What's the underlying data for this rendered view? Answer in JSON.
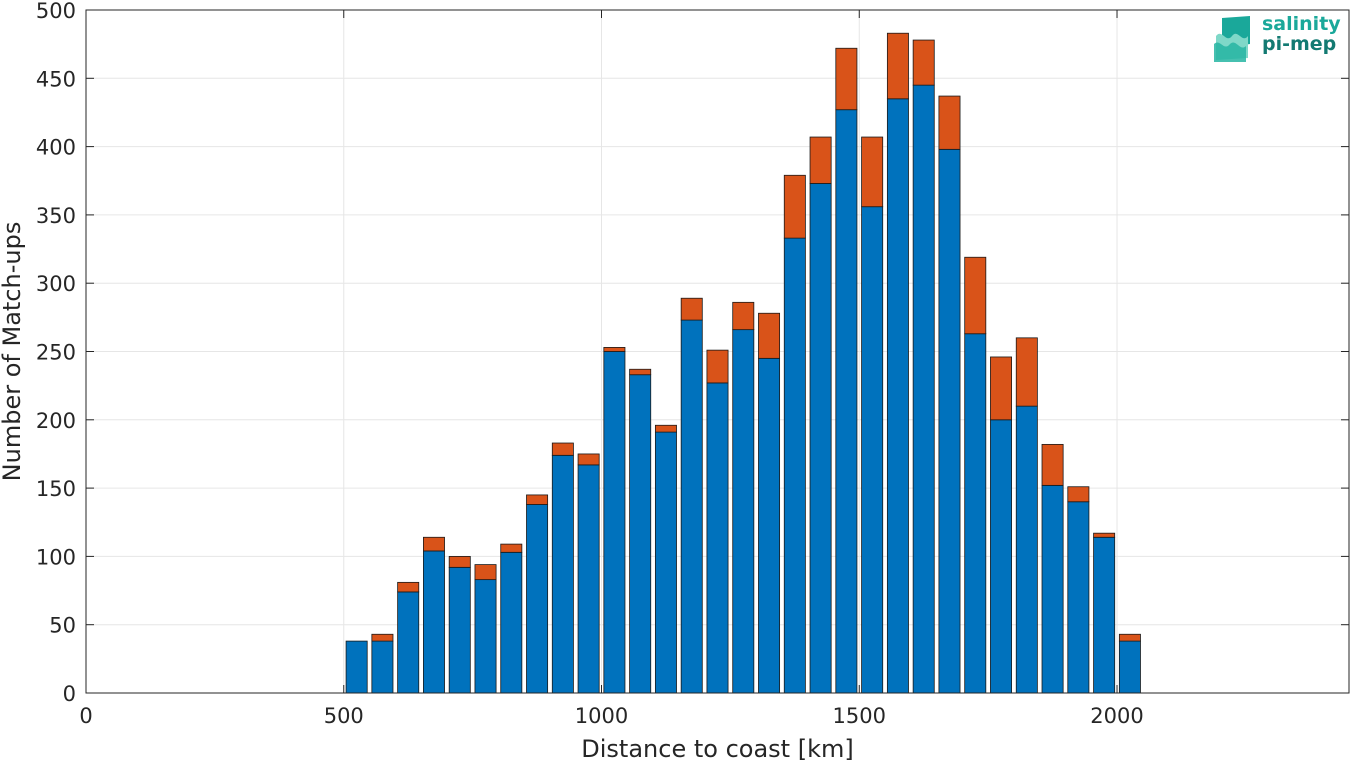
{
  "chart_data": {
    "type": "bar",
    "stacked": true,
    "xlabel": "Distance to coast [km]",
    "ylabel": "Number of Match-ups",
    "xlim": [
      0,
      2450
    ],
    "ylim": [
      0,
      500
    ],
    "xticks": [
      0,
      500,
      1000,
      1500,
      2000
    ],
    "yticks": [
      0,
      50,
      100,
      150,
      200,
      250,
      300,
      350,
      400,
      450,
      500
    ],
    "grid": true,
    "bin_width": 50,
    "x": [
      525,
      575,
      625,
      675,
      725,
      775,
      825,
      875,
      925,
      975,
      1025,
      1075,
      1125,
      1175,
      1225,
      1275,
      1325,
      1375,
      1425,
      1475,
      1525,
      1575,
      1625,
      1675,
      1725,
      1775,
      1825,
      1875,
      1925,
      1975,
      2025
    ],
    "series": [
      {
        "color": "#0072BD",
        "values": [
          38,
          38,
          74,
          104,
          92,
          83,
          103,
          138,
          174,
          167,
          250,
          233,
          191,
          273,
          227,
          266,
          245,
          333,
          373,
          427,
          356,
          435,
          445,
          398,
          263,
          200,
          210,
          152,
          140,
          114,
          38
        ]
      },
      {
        "color": "#D95319",
        "values": [
          0,
          5,
          7,
          10,
          8,
          11,
          6,
          7,
          9,
          8,
          3,
          4,
          5,
          16,
          24,
          20,
          33,
          46,
          34,
          45,
          51,
          48,
          33,
          39,
          56,
          46,
          50,
          30,
          11,
          3,
          5
        ]
      }
    ]
  },
  "logo": {
    "line1": "salinity",
    "line2": "pi-mep",
    "colors": [
      "#1aa89a",
      "#137a72",
      "#7fd8c8"
    ]
  }
}
